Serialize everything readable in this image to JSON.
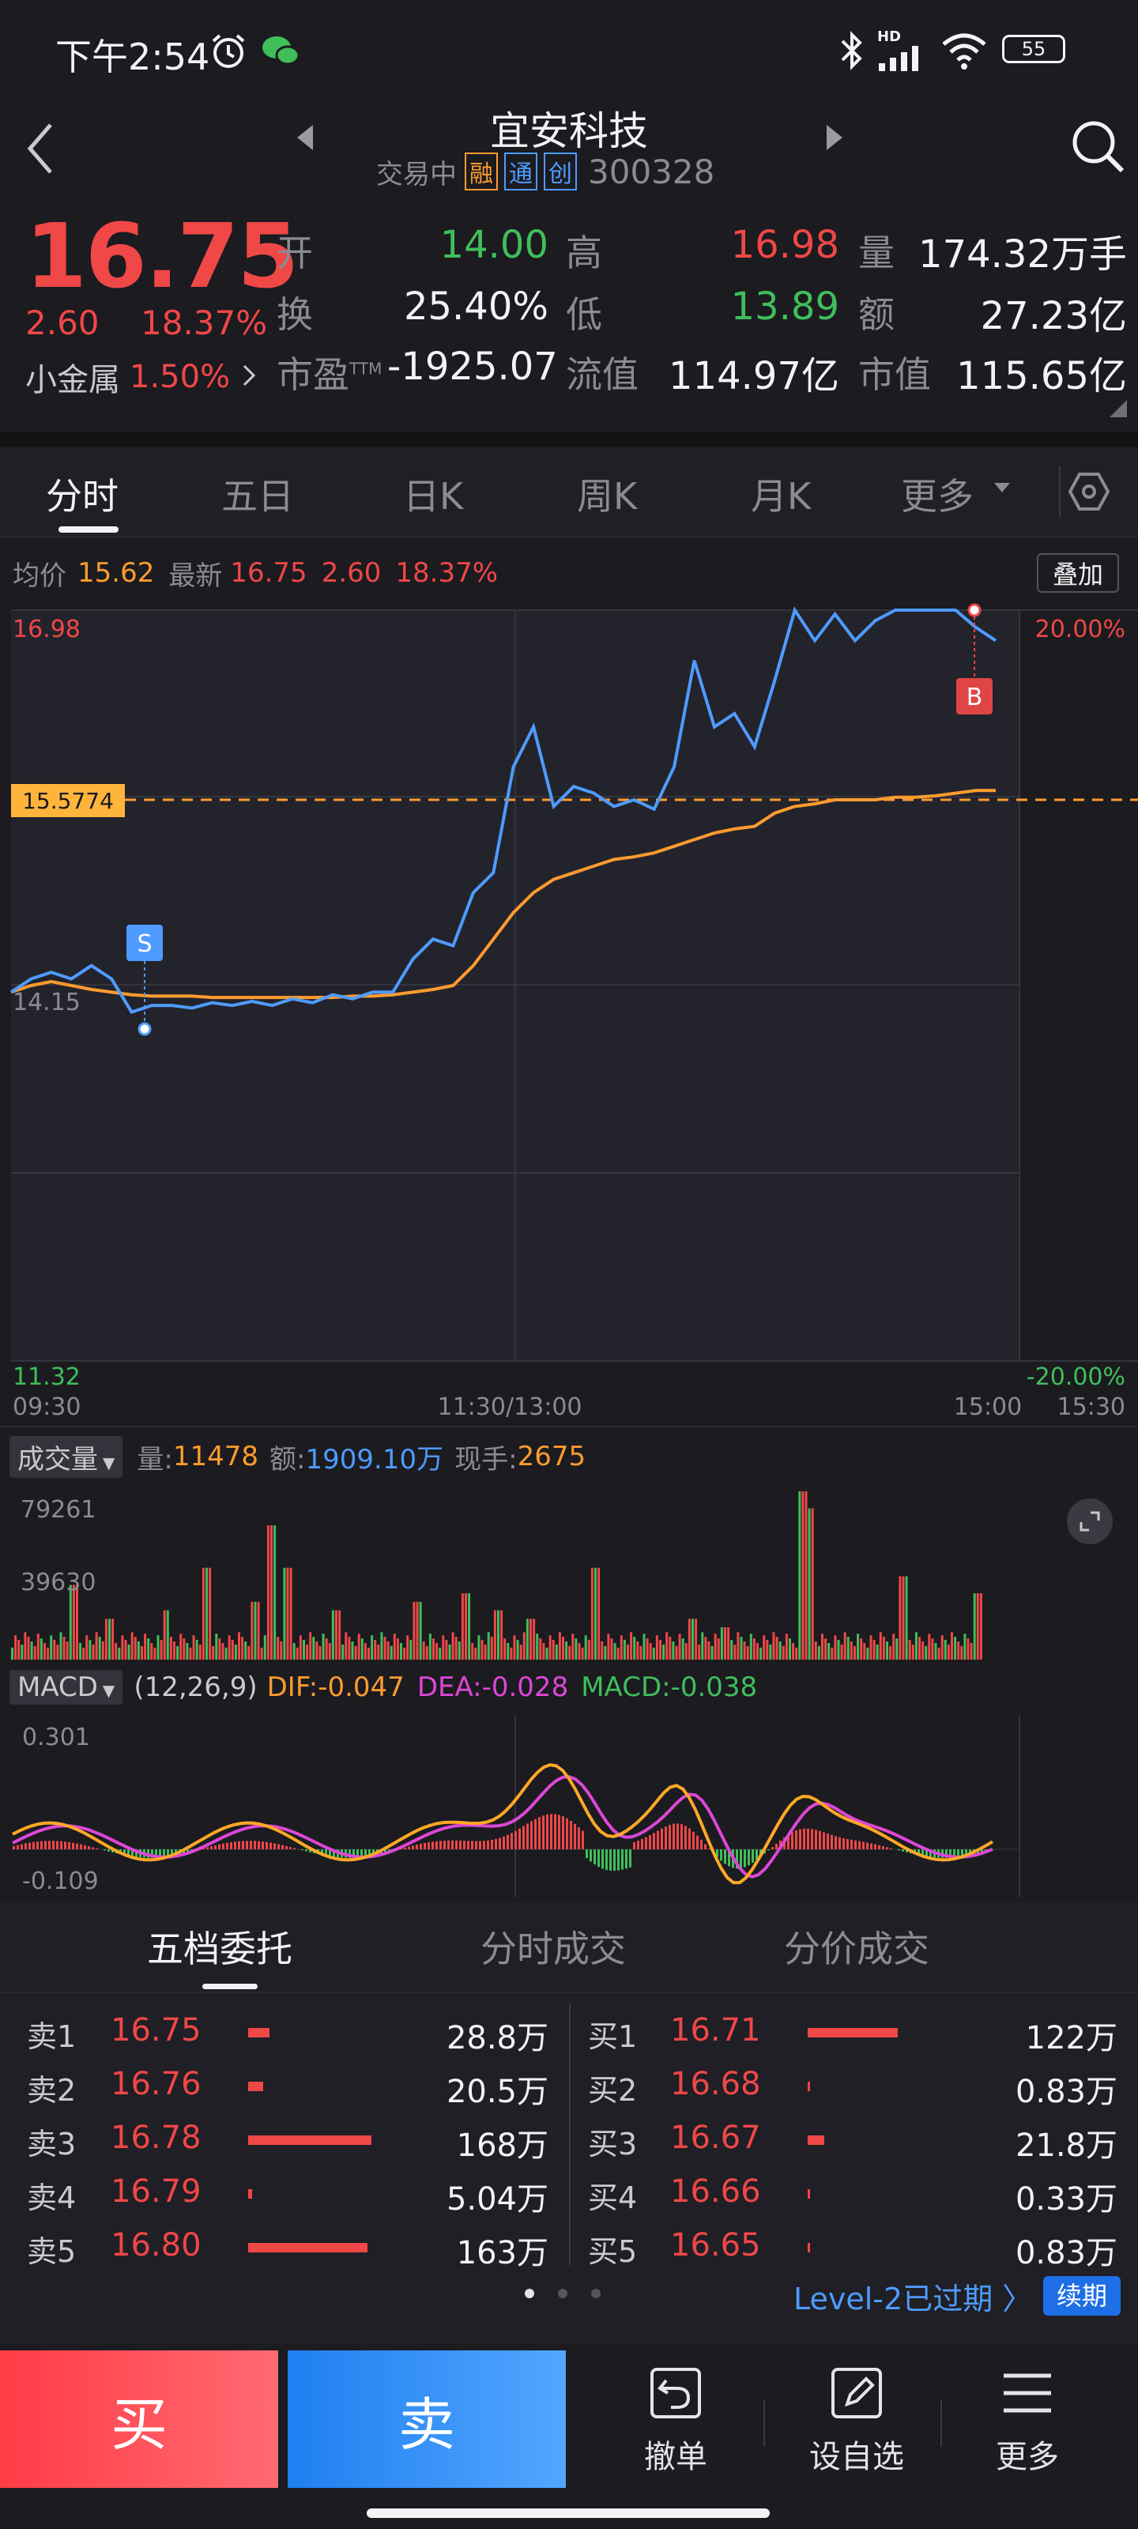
{
  "status_bar": {
    "time": "下午2:54",
    "network": "HD",
    "battery": "55"
  },
  "header": {
    "title": "宜安科技",
    "trade_status": "交易中",
    "tags": [
      "融",
      "通",
      "创"
    ],
    "code": "300328"
  },
  "quote": {
    "price": "16.75",
    "change": "2.60",
    "change_pct": "18.37%",
    "sector_name": "小金属",
    "sector_pct": "1.50%",
    "open_label": "开",
    "open": "14.00",
    "high_label": "高",
    "high": "16.98",
    "volume_label": "量",
    "volume": "174.32万手",
    "turnover_label": "换",
    "turnover": "25.40%",
    "low_label": "低",
    "low": "13.89",
    "amount_label": "额",
    "amount": "27.23亿",
    "pe_label": "市盈",
    "pe_sup": "TTM",
    "pe": "-1925.07",
    "float_cap_label": "流值",
    "float_cap": "114.97亿",
    "market_cap_label": "市值",
    "market_cap": "115.65亿"
  },
  "tabs": [
    "分时",
    "五日",
    "日K",
    "周K",
    "月K",
    "更多"
  ],
  "intraday": {
    "avg_label": "均价",
    "avg": "15.62",
    "latest_label": "最新",
    "latest": "16.75",
    "change": "2.60",
    "change_pct": "18.37%",
    "overlay_button": "叠加",
    "y_top": "16.98",
    "y_mid": "14.15",
    "y_bottom": "11.32",
    "pct_top": "20.00%",
    "pct_bottom": "-20.00%",
    "ref_line_label": "15.5774",
    "time_start": "09:30",
    "time_mid": "11:30/13:00",
    "time_end1": "15:00",
    "time_end2": "15:30",
    "marker_s": "S",
    "marker_b": "B"
  },
  "chart_data": {
    "type": "line",
    "ylim": [
      11.32,
      16.98
    ],
    "reference_price": 14.15,
    "series": [
      {
        "values": [
          14.1,
          14.2,
          14.25,
          14.2,
          14.3,
          14.2,
          13.95,
          14.0,
          14.0,
          13.98,
          14.02,
          14.0,
          14.03,
          14.0,
          14.05,
          14.02,
          14.08,
          14.05,
          14.1,
          14.1,
          14.35,
          14.5,
          14.45,
          14.85,
          15.0,
          15.8,
          16.1,
          15.5,
          15.65,
          15.6,
          15.5,
          15.55,
          15.48,
          15.8,
          16.6,
          16.1,
          16.2,
          15.95,
          16.45,
          16.98,
          16.75,
          16.95,
          16.75,
          16.9,
          16.98,
          16.98,
          16.98,
          16.98,
          16.85,
          16.75
        ]
      },
      {
        "values": [
          14.1,
          14.15,
          14.18,
          14.15,
          14.12,
          14.1,
          14.08,
          14.07,
          14.07,
          14.07,
          14.06,
          14.06,
          14.06,
          14.06,
          14.06,
          14.06,
          14.06,
          14.07,
          14.07,
          14.08,
          14.1,
          14.12,
          14.15,
          14.3,
          14.5,
          14.7,
          14.85,
          14.95,
          15.0,
          15.05,
          15.1,
          15.12,
          15.15,
          15.2,
          15.25,
          15.3,
          15.33,
          15.35,
          15.45,
          15.5,
          15.52,
          15.55,
          15.55,
          15.55,
          15.57,
          15.57,
          15.58,
          15.6,
          15.62,
          15.62
        ]
      }
    ]
  },
  "volume_panel": {
    "selector": "成交量",
    "vol_label": "量:",
    "vol": "11478",
    "amount_label": "额:",
    "amount": "1909.10万",
    "hand_label": "现手:",
    "hand": "2675",
    "y_top": "79261",
    "y_mid": "39630"
  },
  "macd_panel": {
    "selector": "MACD",
    "params": "(12,26,9)",
    "dif": "DIF:-0.047",
    "dea": "DEA:-0.028",
    "macd": "MACD:-0.038",
    "y_top": "0.301",
    "y_bottom": "-0.109"
  },
  "order_tabs": [
    "五档委托",
    "分时成交",
    "分价成交"
  ],
  "sell_orders": [
    {
      "label": "卖1",
      "price": "16.75",
      "qty": "28.8万",
      "ratio": 0.17
    },
    {
      "label": "卖2",
      "price": "16.76",
      "qty": "20.5万",
      "ratio": 0.12
    },
    {
      "label": "卖3",
      "price": "16.78",
      "qty": "168万",
      "ratio": 1.0
    },
    {
      "label": "卖4",
      "price": "16.79",
      "qty": "5.04万",
      "ratio": 0.03
    },
    {
      "label": "卖5",
      "price": "16.80",
      "qty": "163万",
      "ratio": 0.97
    }
  ],
  "buy_orders": [
    {
      "label": "买1",
      "price": "16.71",
      "qty": "122万",
      "ratio": 1.0
    },
    {
      "label": "买2",
      "price": "16.68",
      "qty": "0.83万",
      "ratio": 0.01
    },
    {
      "label": "买3",
      "price": "16.67",
      "qty": "21.8万",
      "ratio": 0.18
    },
    {
      "label": "买4",
      "price": "16.66",
      "qty": "0.33万",
      "ratio": 0.01
    },
    {
      "label": "买5",
      "price": "16.65",
      "qty": "0.83万",
      "ratio": 0.01
    }
  ],
  "level2": {
    "text": "Level-2已过期 〉",
    "renew": "续期"
  },
  "bottom_bar": {
    "buy": "买",
    "sell": "卖",
    "cancel": "撤单",
    "watchlist": "设自选",
    "more": "更多"
  },
  "colors": {
    "up": "#f04747",
    "down": "#3fbf5a",
    "price_line": "#4f9bff",
    "avg_line": "#ff9b2f"
  }
}
